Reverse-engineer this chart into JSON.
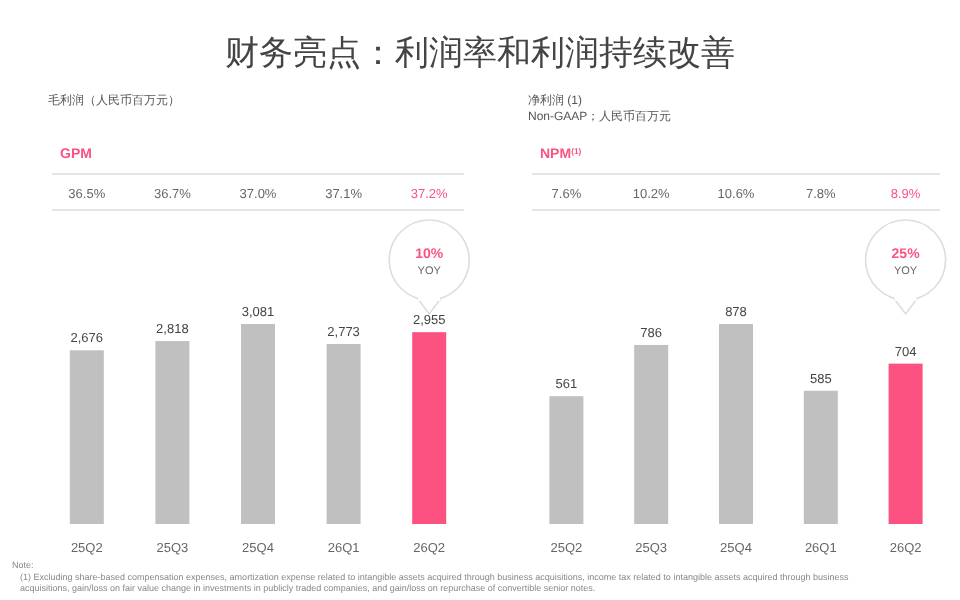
{
  "chart_data": [
    {
      "type": "bar",
      "title": "财务亮点：利润率和利润持续改善",
      "subtitle": "毛利润（人民币百万元）",
      "categories": [
        "25Q2",
        "25Q3",
        "25Q4",
        "26Q1",
        "26Q2"
      ],
      "values": [
        2676,
        2818,
        3081,
        2773,
        2955
      ],
      "value_labels": [
        "2,676",
        "2,818",
        "3,081",
        "2,773",
        "2,955"
      ],
      "colors": [
        "#c0c0c0",
        "#c0c0c0",
        "#c0c0c0",
        "#c0c0c0",
        "#fb5282"
      ],
      "annotations": [
        "GPM",
        "36.5%",
        "36.7%",
        "37.0%",
        "37.1%",
        "37.2%",
        "10%\nYOY",
        "Note:",
        "(1) Excluding share-based compensation expenses, amortization expense related to intangible assets acquired through business acquisitions, income tax related to intangible assets acquired through business acquisitions, gain/loss on fair value change in investments in publicly traded companies, and gain/loss on repurchase of convertible senior notes."
      ]
    },
    {
      "type": "bar",
      "subtitle": "净利润 (1)\nNon-GAAP；人民币百万元",
      "categories": [
        "25Q2",
        "25Q3",
        "25Q4",
        "26Q1",
        "26Q2"
      ],
      "values": [
        561,
        786,
        878,
        585,
        704
      ],
      "value_labels": [
        "561",
        "786",
        "878",
        "585",
        "704"
      ],
      "colors": [
        "#c0c0c0",
        "#c0c0c0",
        "#c0c0c0",
        "#c0c0c0",
        "#fb5282"
      ],
      "annotations": [
        "NPM$^{(1)}$",
        "7.6%",
        "10.2%",
        "10.6%",
        "7.8%",
        "8.9%",
        "25%\nYOY"
      ]
    }
  ]
}
